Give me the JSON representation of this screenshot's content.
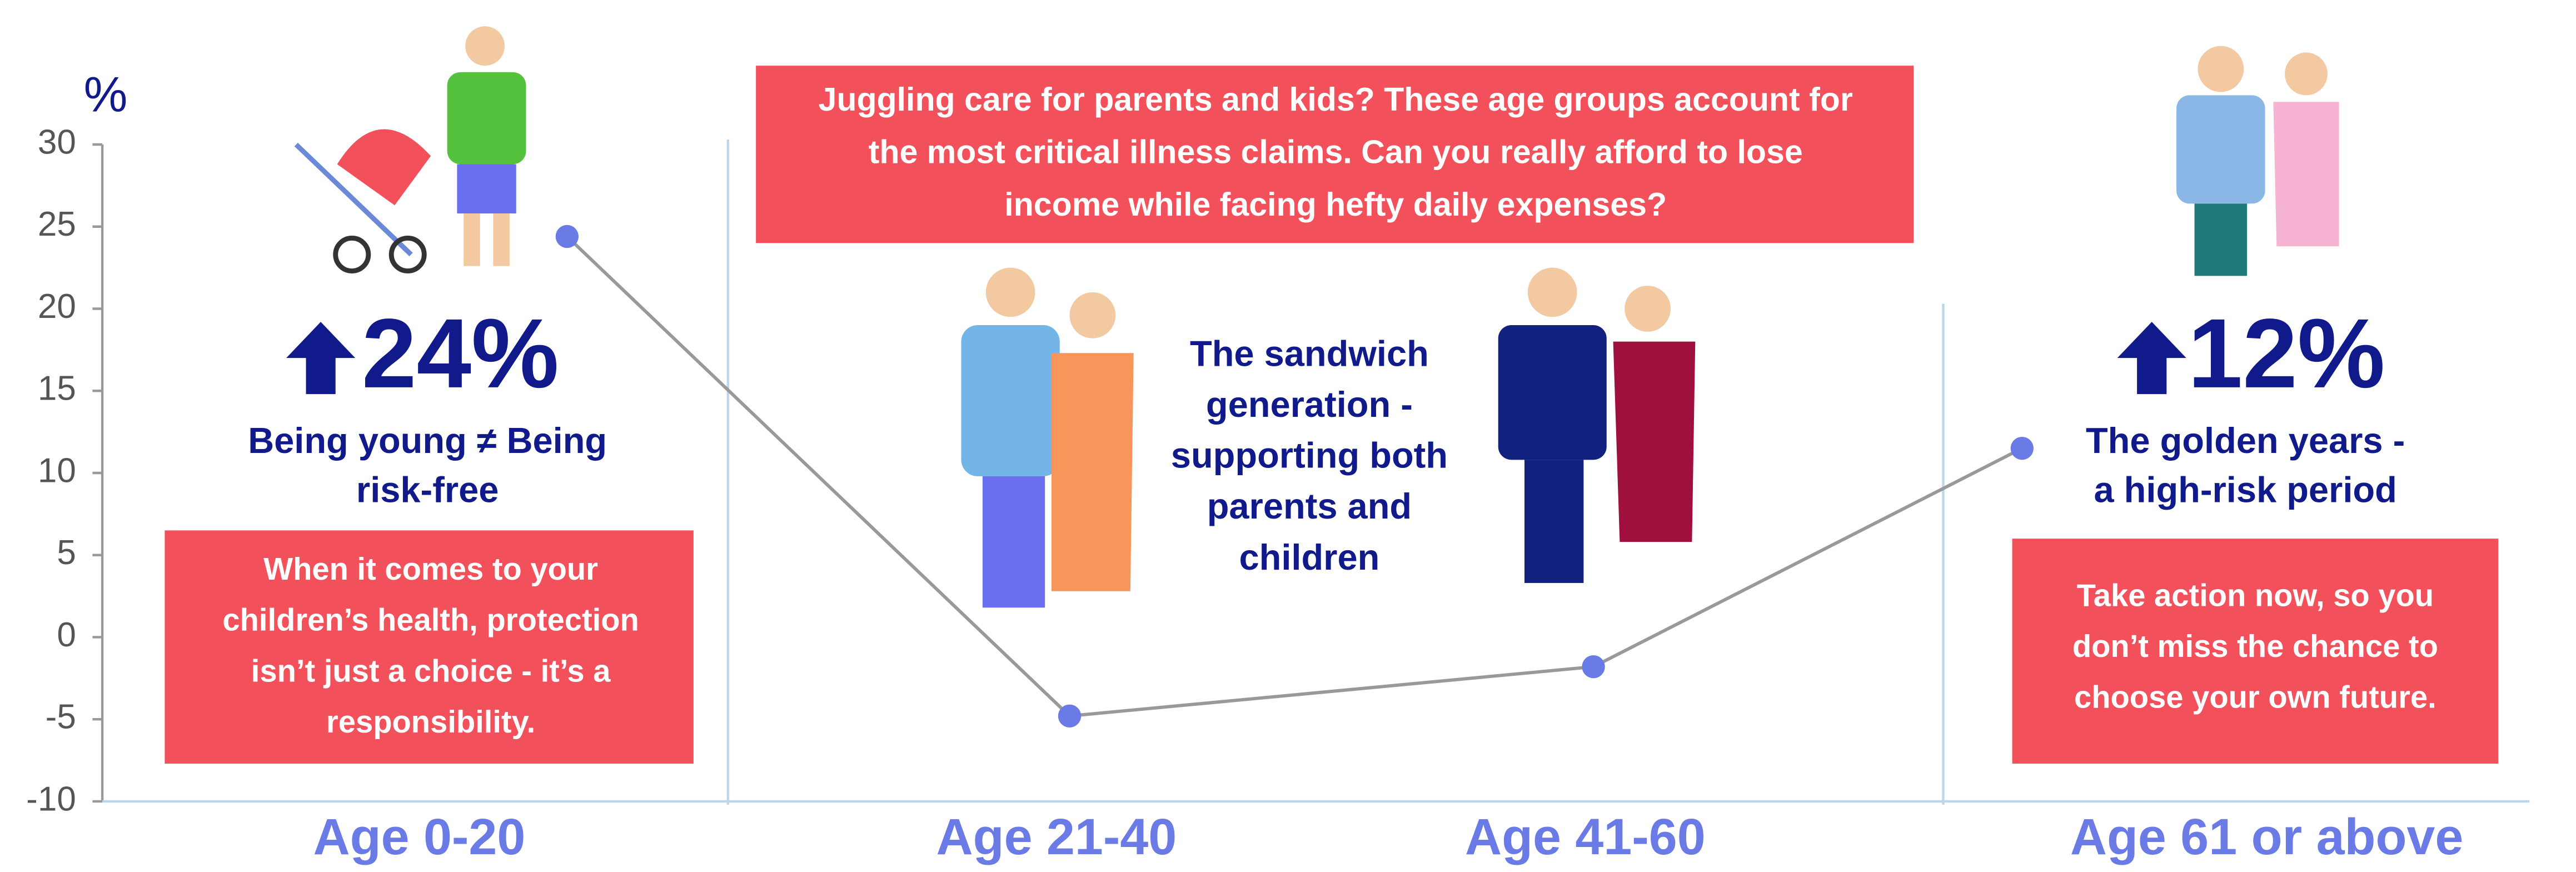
{
  "chart_data": {
    "type": "line",
    "y_label": "%",
    "categories": [
      "Age 0-20",
      "Age 21-40",
      "Age 41-60",
      "Age 61 or above"
    ],
    "values": [
      24.4,
      -4.8,
      -1.8,
      11.5
    ],
    "color": "#6b7be6",
    "line_color": "#999999",
    "ylim": [
      -10,
      30
    ],
    "yticks": [
      -10,
      -5,
      0,
      5,
      10,
      15,
      20,
      25,
      30
    ]
  },
  "panels": {
    "young": {
      "headline": "24%",
      "caption": [
        "Being young ≠ Being",
        "risk-free"
      ],
      "box": [
        "When it comes to your",
        "children’s health, protection",
        "isn’t just a choice - it’s a",
        "responsibility."
      ]
    },
    "banner": [
      "Juggling care for parents and kids? These age groups account for",
      "the most critical illness claims. Can you really afford to lose",
      "income while facing hefty daily expenses?"
    ],
    "sandwich": [
      "The sandwich",
      "generation -",
      "supporting both",
      "parents and",
      "children"
    ],
    "golden": {
      "headline": "12%",
      "caption": [
        "The golden years -",
        "a high-risk period"
      ],
      "box": [
        "Take action now, so you",
        "don’t miss the chance to",
        "choose your own future."
      ]
    }
  }
}
